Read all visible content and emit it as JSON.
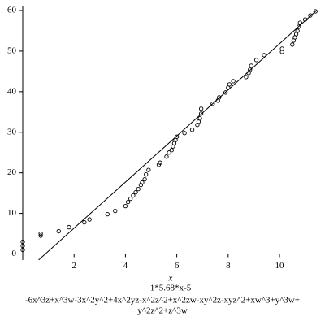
{
  "chart_data": {
    "type": "scatter",
    "xlabel": "x",
    "subtitle": "1*5.68*x-5",
    "caption": [
      "-6x^3z+x^3w-3x^2y^2+4x^2yz-x^2z^2+x^2zw-xy^2z-xyz^2+xw^3+y^3w+",
      "y^2z^2+z^3w"
    ],
    "xlim": [
      0,
      11.55
    ],
    "ylim": [
      -1.5,
      61
    ],
    "xticks": [
      2,
      4,
      6,
      8,
      10
    ],
    "yticks": [
      0,
      10,
      20,
      30,
      40,
      50,
      60
    ],
    "series": [
      {
        "type": "scatter",
        "color": "#000000",
        "x": [
          0,
          0,
          0,
          0.7,
          0.7,
          1.4,
          1.8,
          2.4,
          2.6,
          3.3,
          3.6,
          4.0,
          4.1,
          4.2,
          4.3,
          4.4,
          4.5,
          4.6,
          4.65,
          4.75,
          4.8,
          4.9,
          5.3,
          5.35,
          5.6,
          5.7,
          5.8,
          5.85,
          5.9,
          5.95,
          6.0,
          6.3,
          6.6,
          6.8,
          6.85,
          6.9,
          6.95,
          6.95,
          7.4,
          7.6,
          7.65,
          7.9,
          8.0,
          8.05,
          8.2,
          8.7,
          8.8,
          8.85,
          8.9,
          9.1,
          9.4,
          10.1,
          10.1,
          10.5,
          10.55,
          10.6,
          10.65,
          10.7,
          10.75,
          10.8,
          11.0,
          11.2,
          11.4
        ],
        "values": [
          1,
          2,
          3,
          4.5,
          5,
          5.6,
          6.6,
          7.8,
          8.5,
          9.8,
          10.6,
          11.8,
          12.8,
          13.6,
          14.4,
          15.2,
          16,
          17,
          17.6,
          18.4,
          19.6,
          20.7,
          22,
          22.5,
          24,
          25,
          25.6,
          26.5,
          27.3,
          28.1,
          28.9,
          29.8,
          30.6,
          31.8,
          32.6,
          33.4,
          34.6,
          35.8,
          37,
          37.8,
          38.6,
          39.8,
          41,
          41.8,
          42.6,
          43.6,
          44.6,
          45.4,
          46.4,
          47.8,
          49,
          49.8,
          50.6,
          51.6,
          52.6,
          53.4,
          54.2,
          55,
          56,
          57,
          57.8,
          58.8,
          59.8
        ]
      },
      {
        "type": "line",
        "color": "#000000",
        "x": [
          0.62,
          11.45
        ],
        "values": [
          -1.48,
          60.04
        ]
      }
    ]
  }
}
